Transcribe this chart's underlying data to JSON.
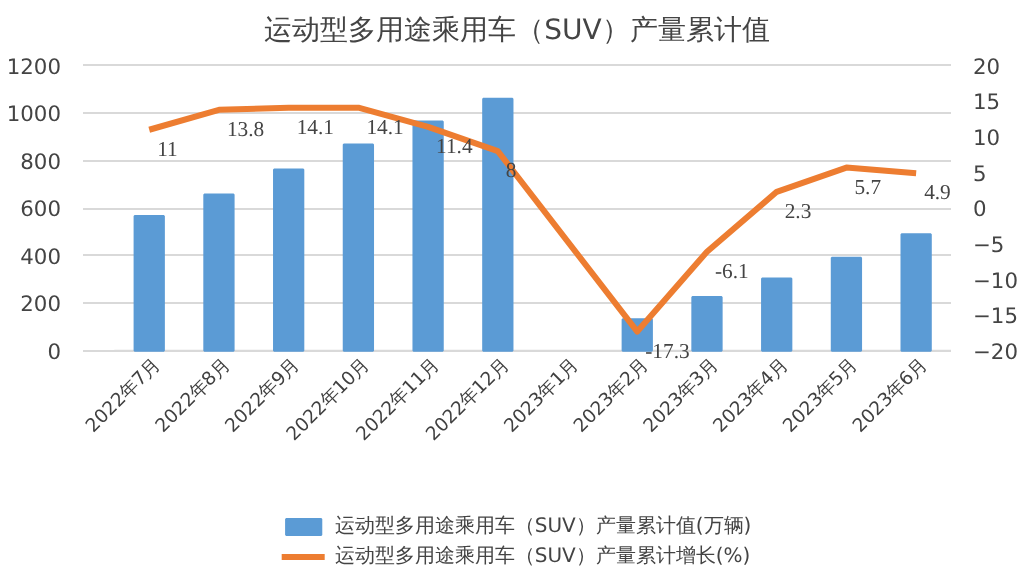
{
  "chart_data": {
    "type": "bar",
    "title": "运动型多用途乘用车（SUV）产量累计值",
    "categories": [
      "2022年7月",
      "2022年8月",
      "2022年9月",
      "2022年10月",
      "2022年11月",
      "2022年12月",
      "2023年1月",
      "2023年2月",
      "2023年3月",
      "2023年4月",
      "2023年5月",
      "2023年6月"
    ],
    "series": [
      {
        "name": "运动型多用途乘用车（SUV）产量累计值(万辆)",
        "type": "bar",
        "color": "#5b9bd5",
        "values": [
          567,
          658,
          763,
          868,
          965,
          1060,
          null,
          133,
          227,
          304,
          392,
          490
        ]
      },
      {
        "name": "运动型多用途乘用车（SUV）产量累计增长(%)",
        "type": "line",
        "axis": "y2",
        "color": "#ed7d31",
        "values": [
          11,
          13.8,
          14.1,
          14.1,
          11.4,
          8,
          null,
          -17.3,
          -6.1,
          2.3,
          5.7,
          4.9
        ],
        "data_labels": true
      }
    ],
    "ylim": [
      0,
      1200
    ],
    "yticks": [
      0,
      200,
      400,
      600,
      800,
      1000,
      1200
    ],
    "y2lim": [
      -20,
      20
    ],
    "y2ticks": [
      -20,
      -15,
      -10,
      -5,
      0,
      5,
      10,
      15,
      20
    ],
    "grid": "y",
    "legend": "bottom"
  }
}
